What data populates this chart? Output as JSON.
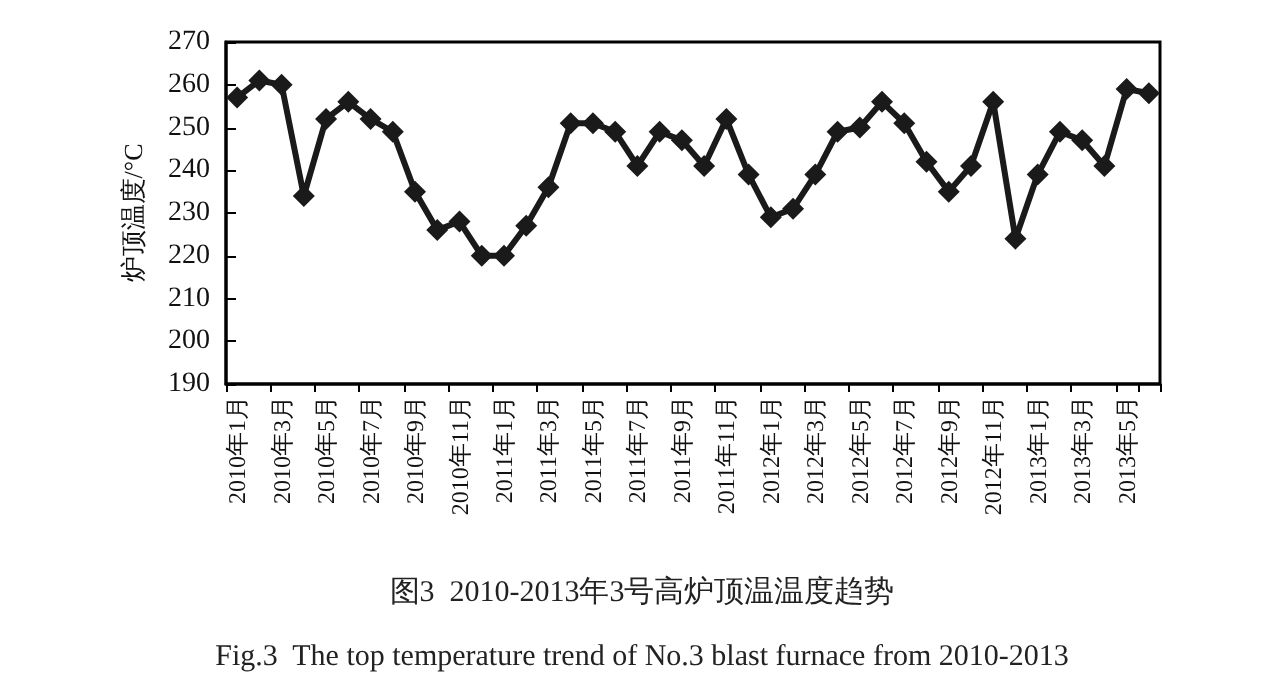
{
  "chart_data": {
    "type": "line",
    "title": "图3  2010-2013年3号高炉顶温温度趋势",
    "subtitle": "Fig.3  The top temperature trend of No.3 blast furnace from 2010-2013",
    "ylabel": "炉顶温度/°C",
    "categories": [
      "2010年1月",
      null,
      "2010年3月",
      null,
      "2010年5月",
      null,
      "2010年7月",
      null,
      "2010年9月",
      null,
      "2010年11月",
      null,
      "2011年1月",
      null,
      "2011年3月",
      null,
      "2011年5月",
      null,
      "2011年7月",
      null,
      "2011年9月",
      null,
      "2011年11月",
      null,
      "2012年1月",
      null,
      "2012年3月",
      null,
      "2012年5月",
      null,
      "2012年7月",
      null,
      "2012年9月",
      null,
      "2012年11月",
      null,
      "2013年1月",
      null,
      "2013年3月",
      null,
      "2013年5月",
      null
    ],
    "series": [
      {
        "color": "#1a1a1a",
        "values": [
          257,
          261,
          260,
          234,
          252,
          256,
          252,
          249,
          235,
          226,
          228,
          220,
          220,
          227,
          236,
          251,
          251,
          249,
          241,
          249,
          247,
          241,
          252,
          239,
          229,
          231,
          239,
          249,
          250,
          256,
          251,
          242,
          235,
          241,
          256,
          224,
          239,
          249,
          247,
          241,
          259,
          258
        ]
      }
    ],
    "ylim": [
      190,
      270
    ],
    "yticks": [
      190,
      200,
      210,
      220,
      230,
      240,
      250,
      260,
      270
    ],
    "grid": false,
    "marker": "diamond",
    "line_style": "solid"
  }
}
